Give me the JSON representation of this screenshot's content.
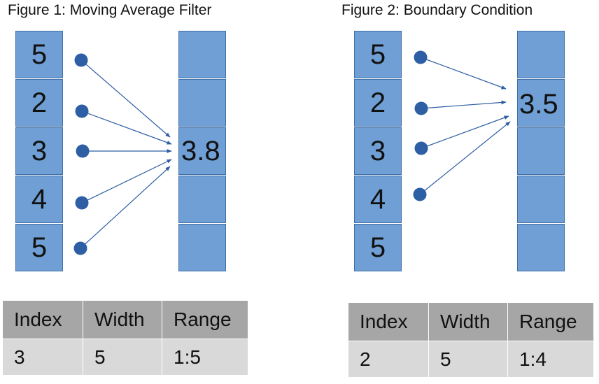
{
  "figure1": {
    "title": "Figure 1: Moving Average Filter",
    "input": [
      "5",
      "2",
      "3",
      "4",
      "5"
    ],
    "output_value": "3.8",
    "table": {
      "headers": [
        "Index",
        "Width",
        "Range"
      ],
      "row": [
        "3",
        "5",
        "1:5"
      ]
    }
  },
  "figure2": {
    "title": "Figure 2: Boundary Condition",
    "input": [
      "5",
      "2",
      "3",
      "4",
      "5"
    ],
    "output_value": "3.5",
    "table": {
      "headers": [
        "Index",
        "Width",
        "Range"
      ],
      "row": [
        "2",
        "5",
        "1:4"
      ]
    }
  },
  "colors": {
    "cell_fill": "#6f9fd4",
    "arrow": "#2e5ea3",
    "table_header": "#a6a6a6",
    "table_row": "#d9d9d9"
  }
}
